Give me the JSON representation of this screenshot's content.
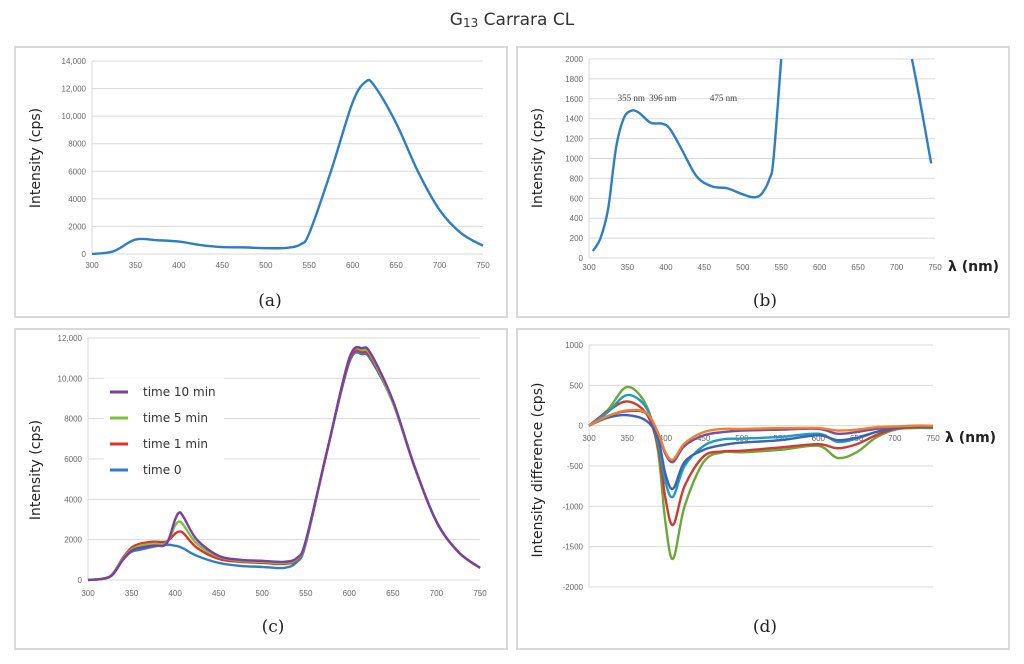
{
  "title": {
    "main": "G",
    "sub": "13",
    "rest": " Carrara CL"
  },
  "chart_data": [
    {
      "id": "a",
      "caption": "(a)",
      "type": "line",
      "ylabel": "Intensity (cps)",
      "xlabel": "",
      "xlim": [
        300,
        750
      ],
      "ylim": [
        0,
        14000
      ],
      "xticks": [
        300,
        350,
        400,
        450,
        500,
        550,
        600,
        650,
        700,
        750
      ],
      "yticks": [
        0,
        2000,
        4000,
        6000,
        8000,
        10000,
        12000,
        14000
      ],
      "ytick_labels": [
        "0",
        "2000",
        "4000",
        "6000",
        "8000",
        "10,000",
        "12,000",
        "14,000"
      ],
      "grid": true,
      "series": [
        {
          "color": "#2f7ec4",
          "segments": [
            {
              "x": [
                300,
                325,
                350,
                375,
                400,
                425,
                450,
                475,
                500,
                525,
                540,
                550,
                575,
                600,
                615,
                625,
                650,
                675,
                700,
                725,
                750
              ],
              "y": [
                0,
                200,
                1050,
                1000,
                900,
                650,
                500,
                480,
                420,
                450,
                700,
                1500,
                6000,
                11000,
                12500,
                12200,
                9500,
                6000,
                3200,
                1500,
                600
              ]
            }
          ]
        }
      ]
    },
    {
      "id": "b",
      "caption": "(b)",
      "type": "line",
      "ylabel": "Intensity (cps)",
      "xlabel": "λ (nm)",
      "xlim": [
        300,
        750
      ],
      "ylim": [
        0,
        2000
      ],
      "xticks": [
        300,
        350,
        400,
        450,
        500,
        550,
        600,
        650,
        700,
        750
      ],
      "yticks": [
        0,
        200,
        400,
        600,
        800,
        1000,
        1200,
        1400,
        1600,
        1800,
        2000
      ],
      "ytick_labels": [
        "0",
        "200",
        "400",
        "600",
        "800",
        "1000",
        "1200",
        "1400",
        "1600",
        "1800",
        "2000"
      ],
      "grid": true,
      "annotations": [
        {
          "text": "355 nm",
          "x": 355,
          "y": 1600
        },
        {
          "text": "396 nm",
          "x": 396,
          "y": 1600
        },
        {
          "text": "475 nm",
          "x": 475,
          "y": 1600
        }
      ],
      "series": [
        {
          "color": "#2f7ec4",
          "segments": [
            {
              "x": [
                305,
                315,
                325,
                335,
                345,
                355,
                365,
                380,
                395,
                405,
                420,
                440,
                460,
                480,
                500,
                515,
                525,
                535,
                540,
                550
              ],
              "y": [
                70,
                200,
                500,
                1100,
                1400,
                1480,
                1460,
                1360,
                1350,
                1300,
                1100,
                820,
                720,
                700,
                640,
                610,
                650,
                800,
                1000,
                2000
              ]
            },
            {
              "x": [
                720,
                730,
                745
              ],
              "y": [
                2000,
                1600,
                950
              ]
            }
          ]
        }
      ]
    },
    {
      "id": "c",
      "caption": "(c)",
      "type": "line",
      "ylabel": "Intensity (cps)",
      "xlabel": "",
      "xlim": [
        300,
        750
      ],
      "ylim": [
        0,
        12000
      ],
      "xticks": [
        300,
        350,
        400,
        450,
        500,
        550,
        600,
        650,
        700,
        750
      ],
      "yticks": [
        0,
        2000,
        4000,
        6000,
        8000,
        10000,
        12000
      ],
      "ytick_labels": [
        "0",
        "2000",
        "4000",
        "6000",
        "8000",
        "10,000",
        "12,000"
      ],
      "grid": true,
      "legend": "top-left",
      "x": [
        300,
        325,
        340,
        350,
        360,
        375,
        390,
        400,
        405,
        410,
        425,
        450,
        475,
        500,
        525,
        540,
        550,
        575,
        600,
        615,
        625,
        650,
        675,
        700,
        725,
        750
      ],
      "series": [
        {
          "name": "time 0",
          "color": "#2f7ec4",
          "y": [
            0,
            150,
            1000,
            1400,
            1500,
            1650,
            1750,
            1700,
            1650,
            1550,
            1200,
            850,
            700,
            650,
            600,
            900,
            1800,
            6500,
            10800,
            11200,
            10900,
            8800,
            5600,
            2900,
            1400,
            600
          ]
        },
        {
          "name": "time 1 min",
          "color": "#e0302a",
          "y": [
            0,
            180,
            1100,
            1600,
            1800,
            1900,
            1900,
            2300,
            2400,
            2300,
            1600,
            1050,
            900,
            850,
            800,
            1000,
            1900,
            6500,
            10900,
            11300,
            11000,
            8800,
            5600,
            2900,
            1400,
            600
          ]
        },
        {
          "name": "time 5 min",
          "color": "#7cc242",
          "y": [
            0,
            170,
            1050,
            1500,
            1700,
            1800,
            1850,
            2700,
            2900,
            2700,
            1800,
            1150,
            950,
            900,
            850,
            1050,
            1900,
            6500,
            11000,
            11400,
            11100,
            8800,
            5600,
            2900,
            1400,
            600
          ]
        },
        {
          "name": "time 10 min",
          "color": "#7b3fa0",
          "y": [
            0,
            160,
            1000,
            1450,
            1600,
            1700,
            1800,
            3000,
            3350,
            3100,
            2000,
            1200,
            1000,
            950,
            900,
            1100,
            1950,
            6500,
            11000,
            11500,
            11200,
            8900,
            5600,
            2900,
            1400,
            600
          ]
        }
      ]
    },
    {
      "id": "d",
      "caption": "(d)",
      "type": "line",
      "ylabel": "Intensity difference (cps)",
      "xlabel": "λ (nm)",
      "xlim": [
        300,
        750
      ],
      "ylim": [
        -2000,
        1000
      ],
      "xticks": [
        300,
        350,
        400,
        450,
        500,
        550,
        600,
        650,
        700,
        750
      ],
      "yticks": [
        -2000,
        -1500,
        -1000,
        -500,
        0,
        500,
        1000
      ],
      "ytick_labels": [
        "-2000",
        "-1500",
        "-1000",
        "-500",
        "0",
        "500",
        "1000"
      ],
      "grid": true,
      "x": [
        300,
        325,
        350,
        375,
        390,
        400,
        410,
        425,
        450,
        475,
        500,
        550,
        600,
        625,
        650,
        675,
        700,
        725,
        750
      ],
      "series": [
        {
          "color": "#6aa83a",
          "y": [
            0,
            200,
            480,
            250,
            -300,
            -1200,
            -1650,
            -1000,
            -450,
            -330,
            -330,
            -300,
            -250,
            -400,
            -330,
            -150,
            -50,
            -30,
            -30
          ]
        },
        {
          "color": "#d03a30",
          "y": [
            0,
            180,
            300,
            150,
            -250,
            -900,
            -1230,
            -750,
            -380,
            -320,
            -310,
            -270,
            -230,
            -280,
            -230,
            -120,
            -40,
            -20,
            -20
          ]
        },
        {
          "color": "#1e9bc0",
          "y": [
            0,
            170,
            380,
            220,
            -200,
            -700,
            -880,
            -500,
            -250,
            -170,
            -160,
            -140,
            -100,
            -200,
            -160,
            -80,
            -30,
            -10,
            -20
          ]
        },
        {
          "color": "#3b64b0",
          "y": [
            0,
            100,
            130,
            60,
            -150,
            -600,
            -780,
            -450,
            -300,
            -240,
            -210,
            -180,
            -120,
            -180,
            -150,
            -80,
            -30,
            -10,
            -20
          ]
        },
        {
          "color": "#7b4fa0",
          "y": [
            0,
            120,
            180,
            150,
            -100,
            -350,
            -450,
            -250,
            -120,
            -80,
            -60,
            -50,
            -40,
            -100,
            -80,
            -40,
            -20,
            0,
            -10
          ]
        },
        {
          "color": "#f08030",
          "y": [
            0,
            120,
            190,
            160,
            -80,
            -330,
            -420,
            -220,
            -80,
            -40,
            -40,
            -30,
            -30,
            -60,
            -50,
            -20,
            -10,
            0,
            0
          ]
        }
      ]
    }
  ]
}
